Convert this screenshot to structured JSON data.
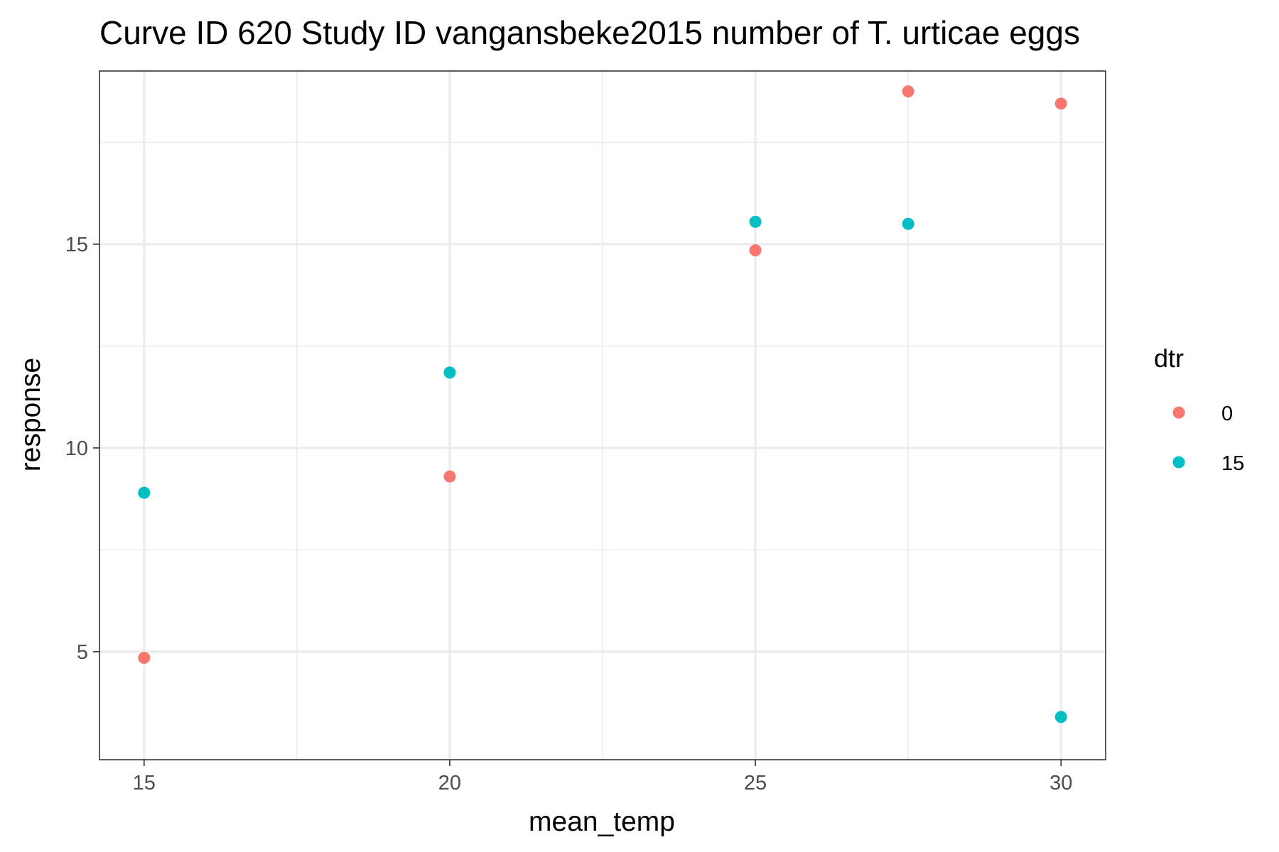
{
  "chart_data": {
    "type": "scatter",
    "title": "Curve ID 620 Study ID vangansbeke2015 number of T. urticae eggs",
    "xlabel": "mean_temp",
    "ylabel": "response",
    "xlim": [
      14.27,
      30.73
    ],
    "ylim": [
      2.35,
      19.25
    ],
    "x_ticks": [
      15,
      20,
      25,
      30
    ],
    "x_tick_labels": [
      "15",
      "20",
      "25",
      "30"
    ],
    "x_minor_ticks": [
      17.5,
      22.5,
      27.5
    ],
    "y_ticks": [
      5,
      10,
      15
    ],
    "y_tick_labels": [
      "5",
      "10",
      "15"
    ],
    "y_minor_ticks": [
      7.5,
      12.5,
      17.5
    ],
    "grid": true,
    "legend": {
      "title": "dtr",
      "position": "right"
    },
    "series": [
      {
        "name": "0",
        "color": "#F8766D",
        "points": [
          {
            "x": 15,
            "y": 4.85
          },
          {
            "x": 20,
            "y": 9.3
          },
          {
            "x": 25,
            "y": 14.85
          },
          {
            "x": 27.5,
            "y": 18.75
          },
          {
            "x": 30,
            "y": 18.45
          }
        ]
      },
      {
        "name": "15",
        "color": "#00BFC4",
        "points": [
          {
            "x": 15,
            "y": 8.9
          },
          {
            "x": 20,
            "y": 11.85
          },
          {
            "x": 25,
            "y": 15.55
          },
          {
            "x": 27.5,
            "y": 15.5
          },
          {
            "x": 30,
            "y": 3.4
          }
        ]
      }
    ]
  }
}
